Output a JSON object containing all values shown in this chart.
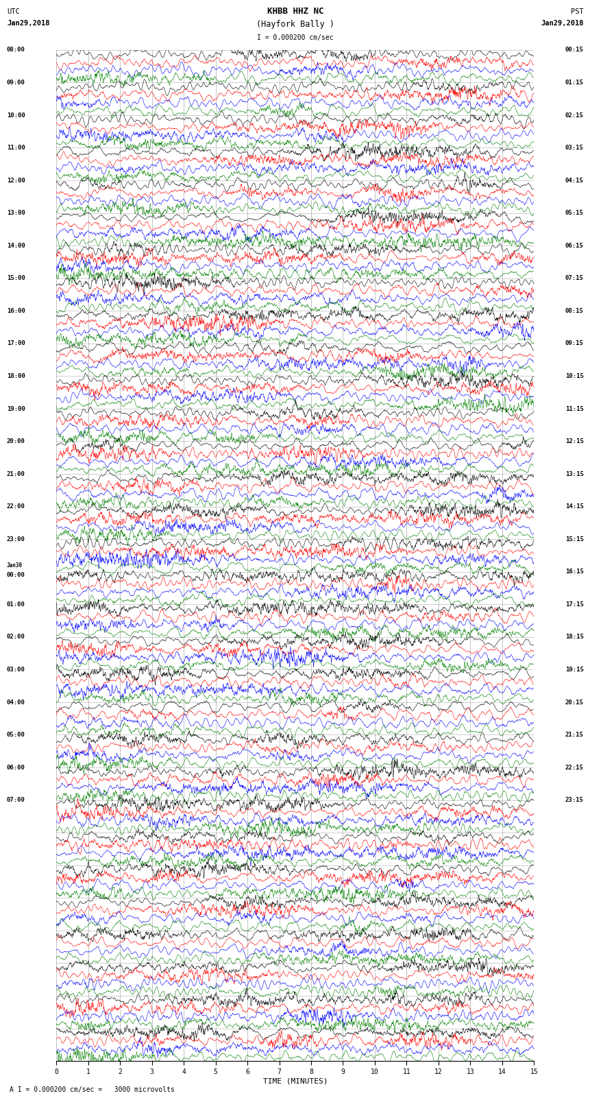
{
  "title_line1": "KHBB HHZ NC",
  "title_line2": "(Hayfork Bally )",
  "scale_label": "I = 0.000200 cm/sec",
  "bottom_label": "A I = 0.000200 cm/sec =   3000 microvolts",
  "xlabel": "TIME (MINUTES)",
  "left_times": [
    "08:00",
    "09:00",
    "10:00",
    "11:00",
    "12:00",
    "13:00",
    "14:00",
    "15:00",
    "16:00",
    "17:00",
    "18:00",
    "19:00",
    "20:00",
    "21:00",
    "22:00",
    "23:00",
    "Jan30\n00:00",
    "01:00",
    "02:00",
    "03:00",
    "04:00",
    "05:00",
    "06:00",
    "07:00"
  ],
  "right_times": [
    "00:15",
    "01:15",
    "02:15",
    "03:15",
    "04:15",
    "05:15",
    "06:15",
    "07:15",
    "08:15",
    "09:15",
    "10:15",
    "11:15",
    "12:15",
    "13:15",
    "14:15",
    "15:15",
    "16:15",
    "17:15",
    "18:15",
    "19:15",
    "20:15",
    "21:15",
    "22:15",
    "23:15"
  ],
  "trace_colors": [
    "black",
    "red",
    "blue",
    "green"
  ],
  "n_groups": 31,
  "traces_per_group": 4,
  "fig_width": 8.5,
  "fig_height": 16.13,
  "background_color": "white",
  "grid_color": "#888888",
  "x_min": 0,
  "x_max": 15,
  "x_ticks": [
    0,
    1,
    2,
    3,
    4,
    5,
    6,
    7,
    8,
    9,
    10,
    11,
    12,
    13,
    14,
    15
  ]
}
